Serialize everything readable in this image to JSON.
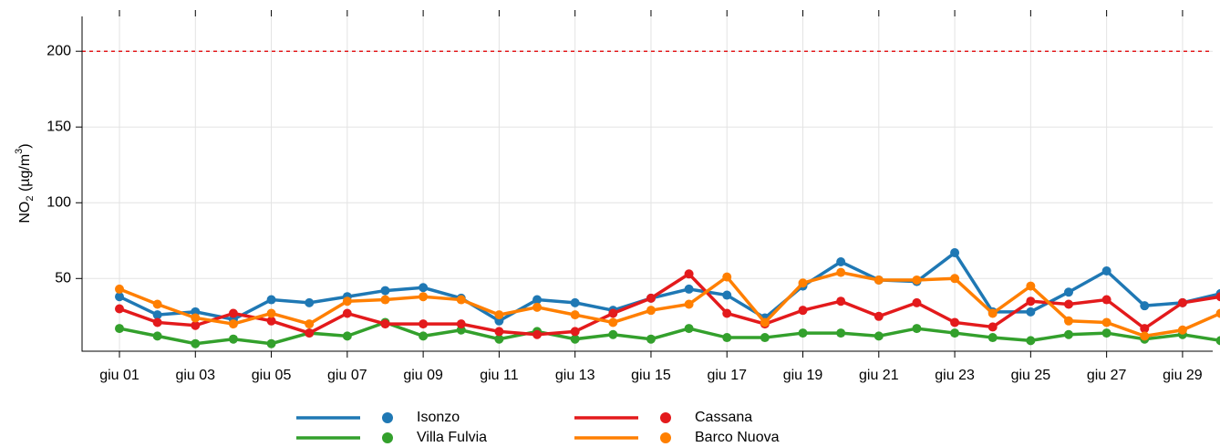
{
  "chart_data": {
    "type": "line",
    "ylabel": [
      "NO",
      "2",
      " (µg/m",
      "3",
      ")"
    ],
    "categories": [
      "giu 01",
      null,
      "giu 03",
      null,
      "giu 05",
      null,
      "giu 07",
      null,
      "giu 09",
      null,
      "giu 11",
      null,
      "giu 13",
      null,
      "giu 15",
      null,
      "giu 17",
      null,
      "giu 19",
      null,
      "giu 21",
      null,
      "giu 23",
      null,
      "giu 25",
      null,
      "giu 27",
      null,
      "giu 29",
      null
    ],
    "series": [
      {
        "name": "Isonzo",
        "color": "#1f78b4",
        "values": [
          38,
          26,
          28,
          23,
          36,
          34,
          38,
          42,
          44,
          37,
          22,
          36,
          34,
          29,
          37,
          43,
          39,
          24,
          45,
          61,
          49,
          48,
          67,
          28,
          28,
          41,
          55,
          32,
          34,
          40
        ]
      },
      {
        "name": "Villa Fulvia",
        "color": "#33a02c",
        "values": [
          17,
          12,
          7,
          10,
          7,
          14,
          12,
          21,
          12,
          16,
          10,
          15,
          10,
          13,
          10,
          17,
          11,
          11,
          14,
          14,
          12,
          17,
          14,
          11,
          9,
          13,
          14,
          10,
          13,
          9
        ]
      },
      {
        "name": "Cassana",
        "color": "#e31a1c",
        "values": [
          30,
          21,
          19,
          27,
          22,
          14,
          27,
          20,
          20,
          20,
          15,
          13,
          15,
          27,
          37,
          53,
          27,
          20,
          29,
          35,
          25,
          34,
          21,
          18,
          35,
          33,
          36,
          17,
          34,
          38
        ]
      },
      {
        "name": "Barco Nuova",
        "color": "#ff7f00",
        "values": [
          43,
          33,
          24,
          20,
          27,
          20,
          35,
          36,
          38,
          36,
          26,
          31,
          26,
          21,
          29,
          33,
          51,
          21,
          47,
          54,
          49,
          49,
          50,
          27,
          45,
          22,
          21,
          12,
          16,
          27
        ]
      }
    ],
    "threshold": {
      "value": 200,
      "color": "#e31a1c"
    },
    "ylim": [
      2,
      223
    ],
    "yticks": [
      50,
      100,
      150,
      200
    ],
    "grid": true
  }
}
